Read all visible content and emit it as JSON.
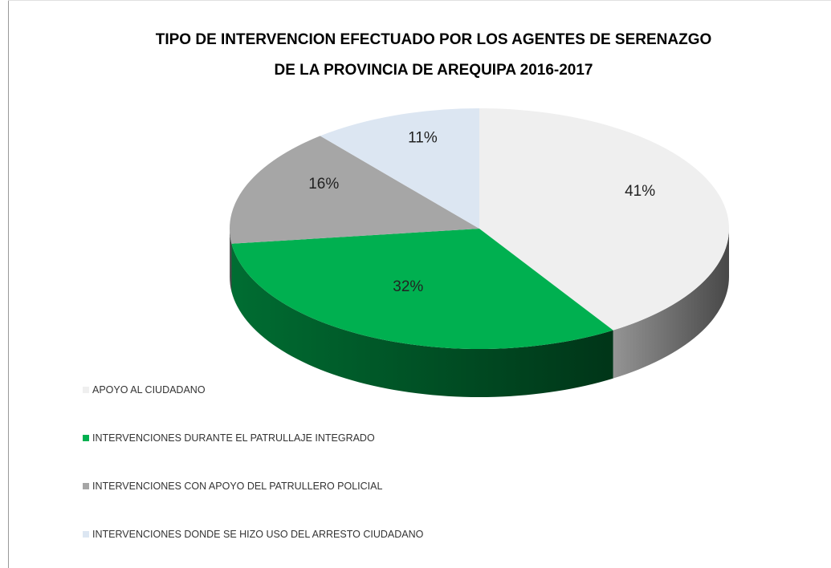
{
  "chart_data": {
    "type": "pie3d",
    "title": [
      "TIPO DE INTERVENCION  EFECTUADO  POR LOS AGENTES  DE SERENAZGO",
      "DE LA PROVINCIA DE AREQUIPA  2016-2017"
    ],
    "categories": [
      "APOYO AL CIUDADANO",
      "INTERVENCIONES DURANTE EL PATRULLAJE INTEGRADO",
      "INTERVENCIONES CON APOYO DEL PATRULLERO POLICIAL",
      "INTERVENCIONES DONDE SE HIZO USO DEL ARRESTO CIUDADANO"
    ],
    "values": [
      41,
      32,
      16,
      11
    ],
    "value_labels": [
      "41%",
      "32%",
      "16%",
      "11%"
    ],
    "colors": [
      "#efefef",
      "#00b050",
      "#a6a6a6",
      "#dce6f2"
    ],
    "legend": "bottom-left"
  }
}
